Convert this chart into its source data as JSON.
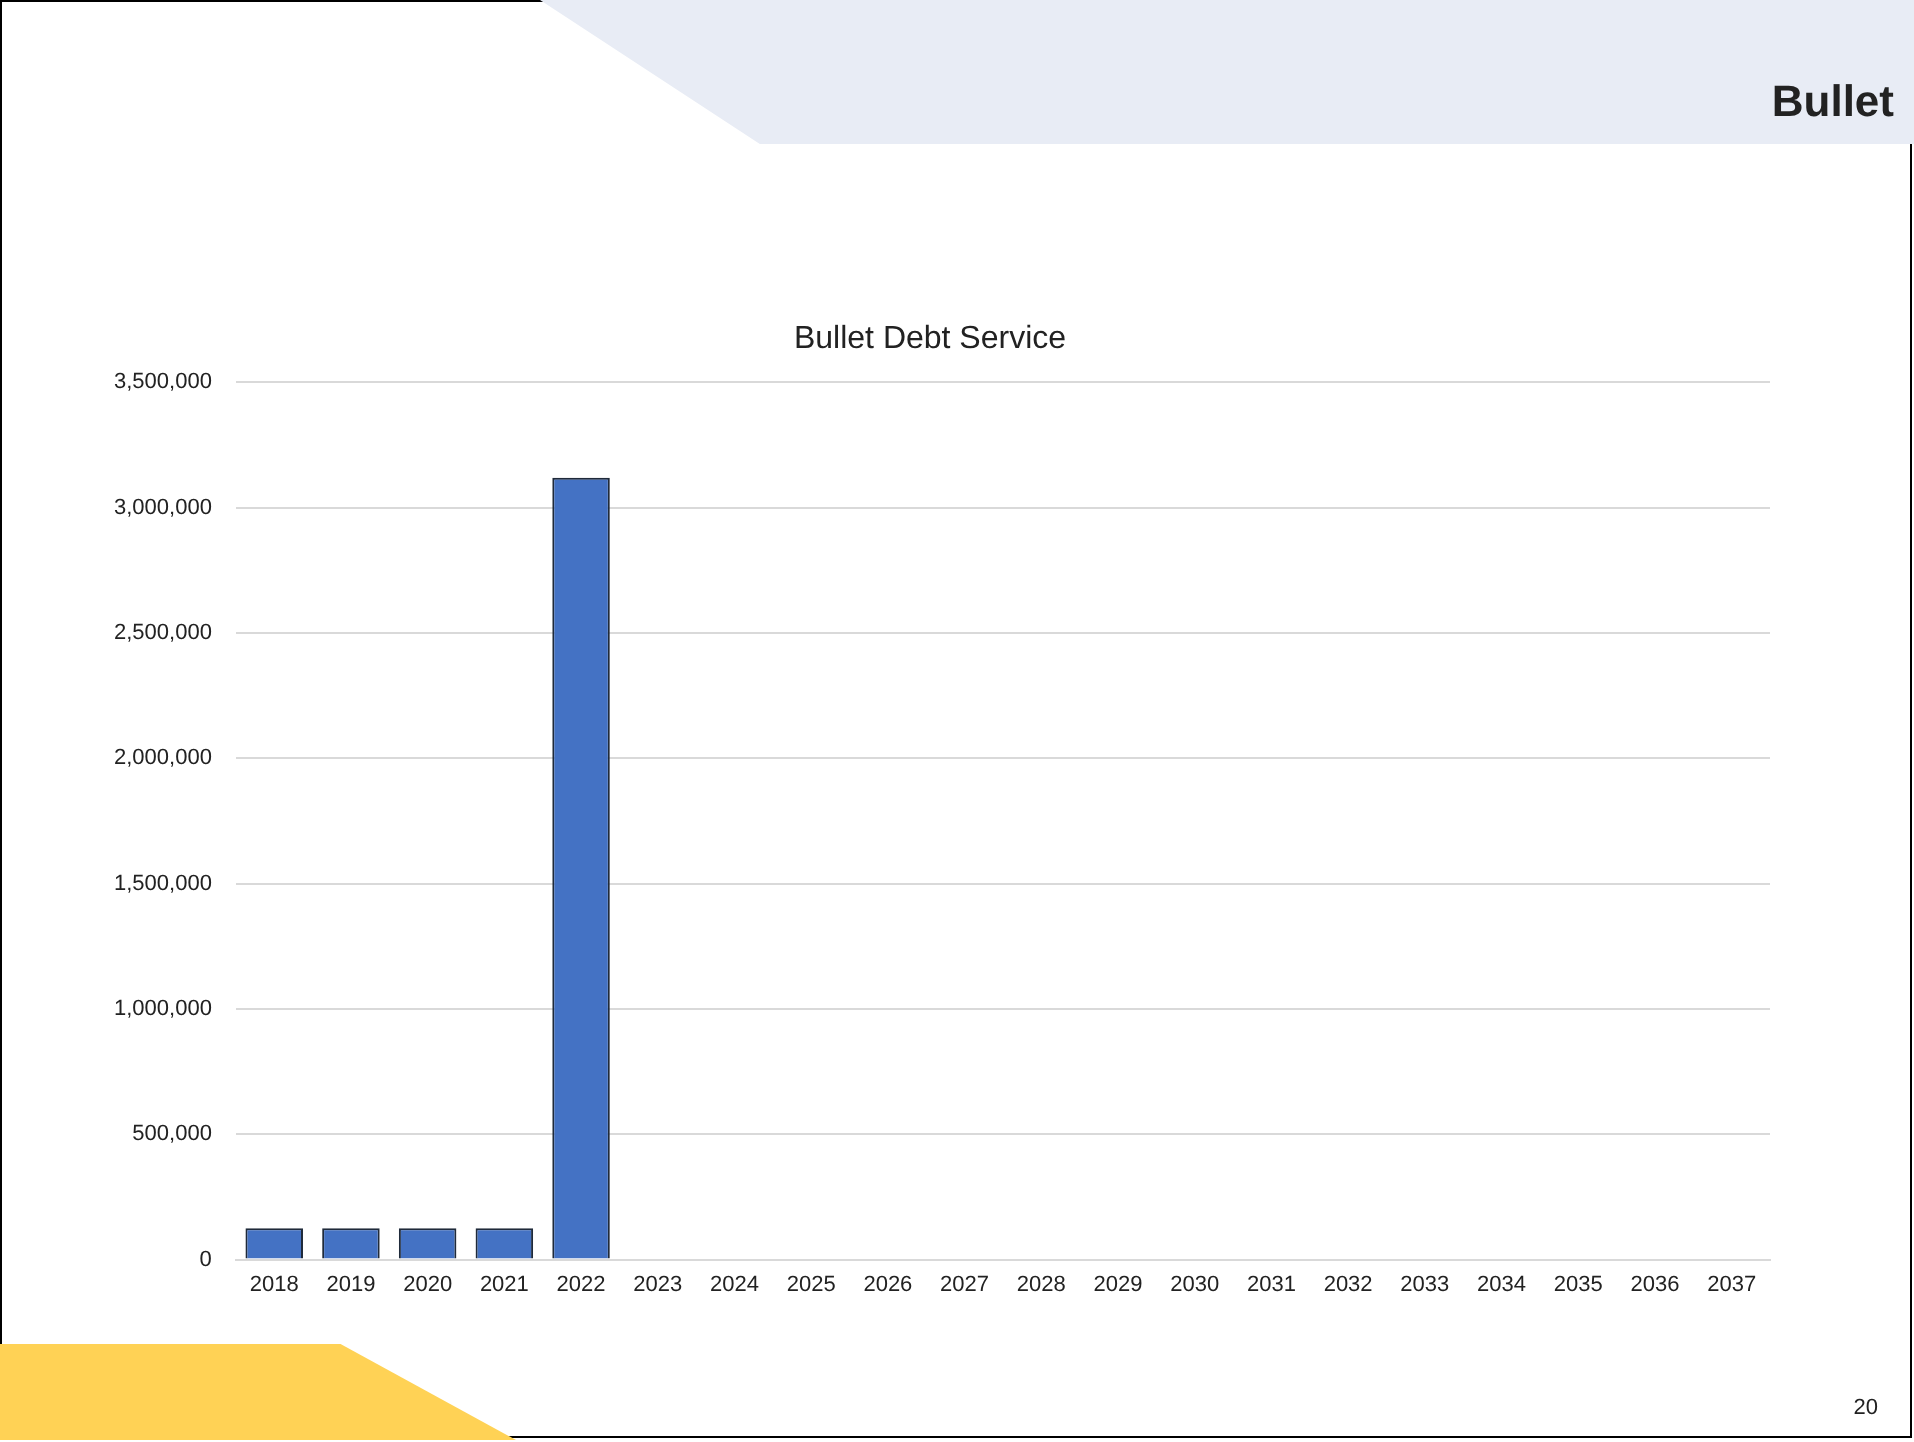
{
  "chart_data": {
    "type": "bar",
    "title": "Bullet Debt Service",
    "categories": [
      "2018",
      "2019",
      "2020",
      "2021",
      "2022",
      "2023",
      "2024",
      "2025",
      "2026",
      "2027",
      "2028",
      "2029",
      "2030",
      "2031",
      "2032",
      "2033",
      "2034",
      "2035",
      "2036",
      "2037"
    ],
    "values": [
      125000,
      125000,
      125000,
      125000,
      3120000,
      0,
      0,
      0,
      0,
      0,
      0,
      0,
      0,
      0,
      0,
      0,
      0,
      0,
      0,
      0
    ],
    "color": "#4472c4",
    "ylim": [
      0,
      3500000
    ],
    "yticks": [
      {
        "value": 0,
        "label": "0"
      },
      {
        "value": 500000,
        "label": "500,000"
      },
      {
        "value": 1000000,
        "label": "1,000,000"
      },
      {
        "value": 1500000,
        "label": "1,500,000"
      },
      {
        "value": 2000000,
        "label": "2,000,000"
      },
      {
        "value": 2500000,
        "label": "2,500,000"
      },
      {
        "value": 3000000,
        "label": "3,000,000"
      },
      {
        "value": 3500000,
        "label": "3,500,000"
      }
    ],
    "grid": "y",
    "annotations": [
      "Bullet",
      "20"
    ]
  }
}
